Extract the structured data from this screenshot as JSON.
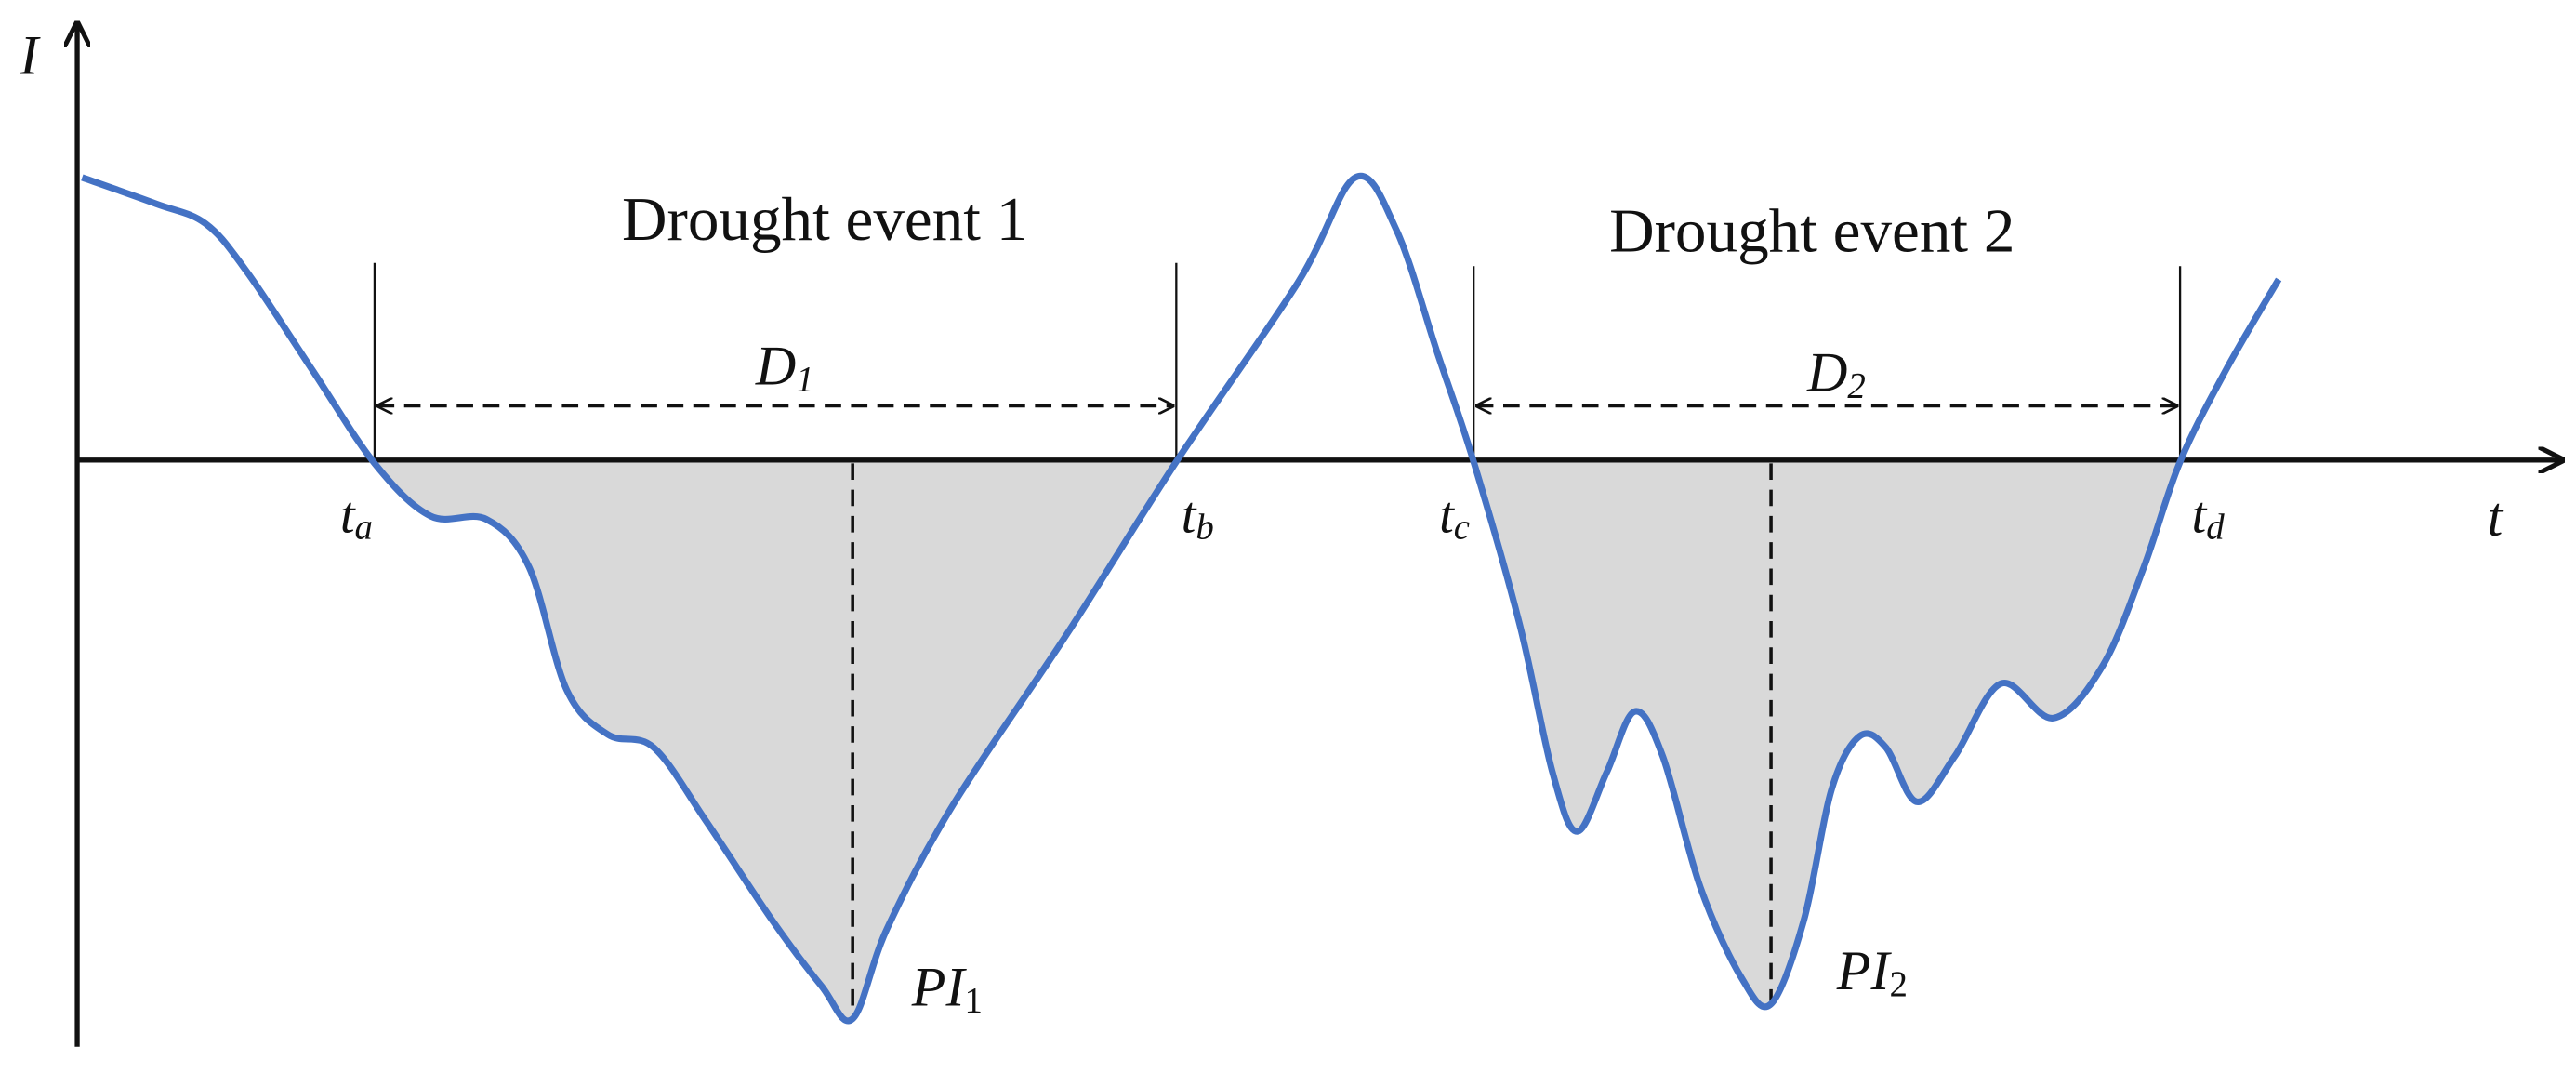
{
  "axes": {
    "y_label": "I",
    "x_label": "t"
  },
  "events": [
    {
      "title": "Drought event 1",
      "duration": {
        "main": "D",
        "sub": "1"
      },
      "peak": {
        "main": "PI",
        "sub": "1"
      }
    },
    {
      "title": "Drought event 2",
      "duration": {
        "main": "D",
        "sub": "2"
      },
      "peak": {
        "main": "PI",
        "sub": "2"
      }
    }
  ],
  "time_points": [
    {
      "main": "t",
      "sub": "a"
    },
    {
      "main": "t",
      "sub": "b"
    },
    {
      "main": "t",
      "sub": "c"
    },
    {
      "main": "t",
      "sub": "d"
    }
  ]
}
